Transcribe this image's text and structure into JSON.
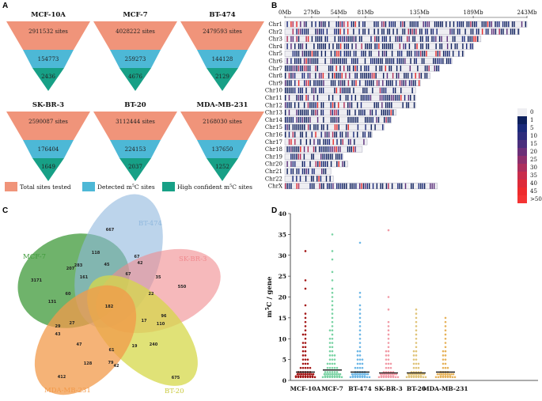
{
  "panels": {
    "a": "A",
    "b": "B",
    "c": "C",
    "d": "D"
  },
  "funnels": [
    {
      "name": "MCF-10A",
      "total": "2911532 sites",
      "detected": "154773",
      "high": "2436"
    },
    {
      "name": "MCF-7",
      "total": "4028222 sites",
      "detected": "259273",
      "high": "4676"
    },
    {
      "name": "BT-474",
      "total": "2479593 sites",
      "detected": "144128",
      "high": "2129"
    },
    {
      "name": "SK-BR-3",
      "total": "2590087 sites",
      "detected": "176404",
      "high": "1649"
    },
    {
      "name": "BT-20",
      "total": "3112444 sites",
      "detected": "224153",
      "high": "2037"
    },
    {
      "name": "MDA-MB-231",
      "total": "2168030 sites",
      "detected": "137650",
      "high": "1252"
    }
  ],
  "legend": {
    "total": "Total sites tested",
    "detected_prefix": "Detected m",
    "detected_sup": "5",
    "detected_suffix": "C sites",
    "high_prefix": "High confident m",
    "high_sup": "5",
    "high_suffix": "C sites"
  },
  "colors": {
    "total": "#f0947a",
    "detected": "#4db8d6",
    "high": "#17a086"
  },
  "chromosome_axis": {
    "ticks": [
      "0Mb",
      "27Mb",
      "54Mb",
      "81Mb",
      "135Mb",
      "189Mb",
      "243Mb"
    ]
  },
  "chromosomes": [
    {
      "name": "Chr1",
      "len": 1.0
    },
    {
      "name": "Chr2",
      "len": 0.97
    },
    {
      "name": "Chr3",
      "len": 0.81
    },
    {
      "name": "Chr4",
      "len": 0.78
    },
    {
      "name": "Chr5",
      "len": 0.74
    },
    {
      "name": "Chr6",
      "len": 0.69
    },
    {
      "name": "Chr7",
      "len": 0.64
    },
    {
      "name": "Chr8",
      "len": 0.6
    },
    {
      "name": "Chr9",
      "len": 0.56
    },
    {
      "name": "Chr10",
      "len": 0.54
    },
    {
      "name": "Chr11",
      "len": 0.54
    },
    {
      "name": "Chr12",
      "len": 0.54
    },
    {
      "name": "Chr13",
      "len": 0.46
    },
    {
      "name": "Chr14",
      "len": 0.44
    },
    {
      "name": "Chr15",
      "len": 0.41
    },
    {
      "name": "Chr16",
      "len": 0.36
    },
    {
      "name": "Chr17",
      "len": 0.34
    },
    {
      "name": "Chr18",
      "len": 0.32
    },
    {
      "name": "Chr19",
      "len": 0.24
    },
    {
      "name": "Chr20",
      "len": 0.26
    },
    {
      "name": "Chr21",
      "len": 0.19
    },
    {
      "name": "Chr22",
      "len": 0.2
    },
    {
      "name": "ChrX",
      "len": 0.63
    }
  ],
  "density_scale": [
    "0",
    "1",
    "5",
    "10",
    "15",
    "20",
    "25",
    "30",
    "35",
    "40",
    "45",
    ">50"
  ],
  "venn": {
    "sets": [
      {
        "name": "MCF-7",
        "color": "#3f9a3a"
      },
      {
        "name": "BT-474",
        "color": "#8fb8dd"
      },
      {
        "name": "SK-BR-3",
        "color": "#f08a8e"
      },
      {
        "name": "BT-20",
        "color": "#d5d84a"
      },
      {
        "name": "MDA-MB-231",
        "color": "#f29a4a"
      }
    ],
    "counts": [
      "667",
      "118",
      "67",
      "42",
      "207",
      "283",
      "45",
      "3171",
      "161",
      "67",
      "35",
      "550",
      "131",
      "60",
      "182",
      "22",
      "29",
      "27",
      "17",
      "96",
      "43",
      "110",
      "47",
      "61",
      "19",
      "240",
      "128",
      "79",
      "42",
      "412",
      "675"
    ]
  },
  "chart_data": {
    "type": "scatter",
    "title": "",
    "ylabel_prefix": "m",
    "ylabel_sup": "5",
    "ylabel_suffix": "C / gene",
    "ylim": [
      0,
      40
    ],
    "yticks": [
      "0",
      "5",
      "10",
      "15",
      "20",
      "25",
      "30",
      "35",
      "40"
    ],
    "categories": [
      "MCF-10A",
      "MCF-7",
      "BT-474",
      "SK-BR-3",
      "BT-20",
      "MDA-MB-231"
    ],
    "colors": [
      "#a31515",
      "#7ad3a4",
      "#6db7e6",
      "#f19aa6",
      "#e0c47a",
      "#e6b25a"
    ],
    "medians": [
      2,
      2.5,
      2,
      1.8,
      1.8,
      2
    ],
    "max": [
      31,
      35,
      33,
      36,
      17,
      15
    ],
    "series": [
      {
        "name": "MCF-10A",
        "values": [
          1,
          1,
          1,
          1,
          1,
          1,
          1,
          1,
          2,
          2,
          2,
          2,
          2,
          2,
          3,
          3,
          3,
          3,
          3,
          4,
          4,
          4,
          5,
          5,
          5,
          6,
          6,
          7,
          7,
          8,
          8,
          9,
          9,
          10,
          11,
          11,
          12,
          13,
          14,
          15,
          16,
          18,
          22,
          24,
          31
        ]
      },
      {
        "name": "MCF-7",
        "values": [
          1,
          1,
          1,
          1,
          1,
          1,
          1,
          2,
          2,
          2,
          2,
          2,
          2,
          3,
          3,
          3,
          3,
          3,
          4,
          4,
          4,
          4,
          5,
          5,
          5,
          6,
          6,
          6,
          7,
          7,
          8,
          8,
          9,
          9,
          10,
          10,
          11,
          12,
          12,
          13,
          14,
          15,
          16,
          17,
          18,
          19,
          20,
          21,
          22,
          24,
          26,
          29,
          31,
          35
        ]
      },
      {
        "name": "BT-474",
        "values": [
          1,
          1,
          1,
          1,
          1,
          1,
          2,
          2,
          2,
          2,
          2,
          3,
          3,
          3,
          3,
          4,
          4,
          4,
          5,
          5,
          5,
          6,
          6,
          7,
          7,
          8,
          9,
          10,
          11,
          12,
          13,
          14,
          15,
          16,
          17,
          18,
          20,
          21,
          33
        ]
      },
      {
        "name": "SK-BR-3",
        "values": [
          1,
          1,
          1,
          1,
          1,
          1,
          2,
          2,
          2,
          2,
          2,
          3,
          3,
          3,
          4,
          4,
          4,
          5,
          5,
          6,
          6,
          7,
          7,
          8,
          9,
          10,
          11,
          12,
          13,
          14,
          17,
          20,
          36
        ]
      },
      {
        "name": "BT-20",
        "values": [
          1,
          1,
          1,
          1,
          1,
          1,
          2,
          2,
          2,
          2,
          2,
          3,
          3,
          3,
          4,
          4,
          4,
          5,
          5,
          6,
          6,
          7,
          7,
          8,
          9,
          10,
          11,
          12,
          13,
          14,
          15,
          16,
          17
        ]
      },
      {
        "name": "MDA-MB-231",
        "values": [
          1,
          1,
          1,
          1,
          1,
          2,
          2,
          2,
          2,
          3,
          3,
          3,
          4,
          4,
          5,
          5,
          6,
          6,
          7,
          7,
          8,
          9,
          10,
          11,
          12,
          13,
          14,
          15
        ]
      }
    ]
  }
}
